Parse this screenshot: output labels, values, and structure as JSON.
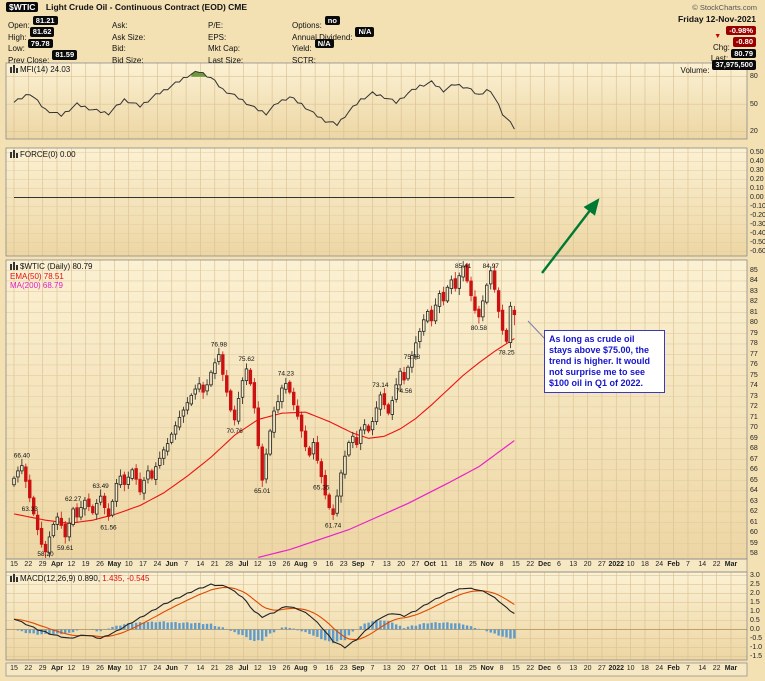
{
  "header": {
    "symbol": "$WTIC",
    "title": "Light Crude Oil - Continuous Contract (EOD) CME",
    "copyright": "© StockCharts.com"
  },
  "quote": {
    "date": "Friday 12-Nov-2021",
    "columns": [
      [
        {
          "label": "Open:",
          "value": "81.21"
        },
        {
          "label": "High:",
          "value": "81.62"
        },
        {
          "label": "Low:",
          "value": "79.78"
        },
        {
          "label": "Prev Close:",
          "value": "81.59"
        }
      ],
      [
        {
          "label": "Ask:"
        },
        {
          "label": "Ask Size:"
        },
        {
          "label": "Bid:"
        },
        {
          "label": "Bid Size:"
        }
      ],
      [
        {
          "label": "P/E:"
        },
        {
          "label": "EPS:"
        },
        {
          "label": "Mkt Cap:"
        },
        {
          "label": "Last Size:"
        }
      ],
      [
        {
          "label": "Options:",
          "value": "no"
        },
        {
          "label": "Annual Dividend:",
          "value": "N/A"
        },
        {
          "label": "Yield:",
          "value": "N/A"
        },
        {
          "label": "SCTR:"
        }
      ]
    ],
    "change_rows": [
      {
        "label": "",
        "value": "-0.98%",
        "cls": "red",
        "tri": true
      },
      {
        "label": "Chg:",
        "value": "-0.80",
        "cls": "red"
      },
      {
        "label": "Last:",
        "value": "80.79",
        "cls": "dark"
      },
      {
        "label": "Volume:",
        "value": "37,975,500",
        "cls": "dark"
      }
    ]
  },
  "legends": {
    "mfi": "MFI(14) 24.03",
    "force": "FORCE(0) 0.00",
    "price": "$WTIC (Daily) 80.79",
    "ema50": "EMA(50) 78.51",
    "ma200": "MA(200) 68.79",
    "macd_black": "MACD(12,26,9) 0.890,",
    "macd_red": "1.435, -0.545"
  },
  "annotation": {
    "text": "As long as crude oil stays above $75.00, the trend is higher. It would not surprise me to see $100 oil in Q1 of 2022."
  },
  "colors": {
    "up": "#222222",
    "down": "#CC1111",
    "up_fill": "#F8ECC6",
    "ema50": "#EE1111",
    "ma200": "#E822CC",
    "mfi_line": "#333333",
    "overbought_fill": "#6F9940",
    "macd_line": "#222222",
    "signal_line": "#E04A00",
    "histogram": "#5E9BCB",
    "arrow": "#007A33",
    "annotation_blue": "#1515CC",
    "panel_grad_top": "#FBF1D3",
    "panel_grad_bottom": "#EDD6A4",
    "grid": "#D8BD8E"
  },
  "chart_data": {
    "type": "candlestick",
    "title": "$WTIC Light Crude Oil - Continuous Contract (EOD) CME",
    "timeframe": "Daily",
    "last_close": 80.79,
    "closes": [
      65.2,
      65.9,
      66.4,
      64.9,
      63.33,
      61.8,
      60.3,
      58.9,
      58.2,
      59.6,
      60.8,
      61.5,
      60.7,
      59.61,
      60.9,
      62.27,
      61.5,
      62.4,
      63.1,
      62.5,
      61.9,
      62.8,
      63.49,
      62.4,
      61.56,
      63.0,
      64.7,
      65.4,
      64.6,
      65.3,
      66.0,
      65.1,
      63.9,
      65.0,
      65.9,
      65.2,
      66.3,
      67.1,
      67.9,
      68.5,
      69.4,
      70.2,
      71.0,
      71.7,
      72.4,
      73.1,
      73.7,
      74.2,
      73.4,
      74.1,
      75.3,
      76.2,
      76.98,
      75.1,
      73.4,
      71.7,
      70.76,
      72.8,
      74.5,
      75.62,
      74.2,
      71.9,
      68.3,
      65.01,
      67.5,
      69.7,
      71.6,
      72.5,
      73.8,
      74.23,
      73.4,
      72.2,
      71.1,
      69.7,
      68.2,
      67.4,
      68.6,
      66.9,
      65.35,
      63.6,
      62.4,
      61.74,
      63.5,
      65.7,
      67.3,
      68.6,
      69.2,
      68.4,
      69.8,
      70.3,
      69.7,
      70.6,
      71.9,
      73.14,
      72.2,
      71.4,
      72.6,
      74.1,
      75.4,
      74.56,
      75.78,
      76.9,
      78.1,
      79.2,
      80.3,
      81.1,
      80.2,
      81.7,
      82.8,
      82.1,
      83.4,
      84.1,
      83.3,
      84.5,
      85.41,
      84.0,
      82.6,
      81.2,
      80.58,
      82.1,
      83.6,
      84.97,
      83.2,
      81.1,
      79.3,
      78.25,
      81.59,
      80.79
    ],
    "last_bar": {
      "open": 81.21,
      "high": 81.62,
      "low": 79.78,
      "close": 80.79
    },
    "ema50_points": [
      [
        0,
        61.8
      ],
      [
        8,
        61.2
      ],
      [
        14,
        60.9
      ],
      [
        20,
        61.2
      ],
      [
        26,
        61.8
      ],
      [
        32,
        62.6
      ],
      [
        38,
        63.8
      ],
      [
        44,
        65.4
      ],
      [
        50,
        67.2
      ],
      [
        56,
        69.3
      ],
      [
        62,
        70.8
      ],
      [
        68,
        71.4
      ],
      [
        74,
        71.5
      ],
      [
        80,
        70.6
      ],
      [
        86,
        69.5
      ],
      [
        90,
        69.0
      ],
      [
        94,
        69.2
      ],
      [
        98,
        69.9
      ],
      [
        102,
        70.9
      ],
      [
        106,
        72.2
      ],
      [
        110,
        73.6
      ],
      [
        114,
        75.0
      ],
      [
        118,
        76.2
      ],
      [
        122,
        77.3
      ],
      [
        127,
        78.51
      ]
    ],
    "ma200_points": [
      [
        55,
        57.0
      ],
      [
        70,
        58.4
      ],
      [
        85,
        60.3
      ],
      [
        100,
        62.8
      ],
      [
        110,
        64.7
      ],
      [
        118,
        66.3
      ],
      [
        127,
        68.79
      ]
    ],
    "mfi_points": [
      [
        0,
        52
      ],
      [
        4,
        62
      ],
      [
        8,
        44
      ],
      [
        12,
        38
      ],
      [
        16,
        50
      ],
      [
        20,
        44
      ],
      [
        24,
        40
      ],
      [
        28,
        55
      ],
      [
        32,
        48
      ],
      [
        36,
        60
      ],
      [
        40,
        70
      ],
      [
        44,
        81
      ],
      [
        47,
        86
      ],
      [
        50,
        79
      ],
      [
        53,
        66
      ],
      [
        57,
        57
      ],
      [
        61,
        46
      ],
      [
        64,
        40
      ],
      [
        67,
        52
      ],
      [
        70,
        58
      ],
      [
        73,
        50
      ],
      [
        76,
        40
      ],
      [
        79,
        32
      ],
      [
        82,
        28
      ],
      [
        85,
        42
      ],
      [
        88,
        55
      ],
      [
        91,
        62
      ],
      [
        94,
        58
      ],
      [
        97,
        52
      ],
      [
        100,
        62
      ],
      [
        103,
        70
      ],
      [
        106,
        74
      ],
      [
        109,
        65
      ],
      [
        112,
        72
      ],
      [
        115,
        68
      ],
      [
        118,
        60
      ],
      [
        120,
        66
      ],
      [
        122,
        58
      ],
      [
        124,
        40
      ],
      [
        127,
        24
      ]
    ],
    "mfi_last": 24.03,
    "force_value": 0.0,
    "macd_points": [
      [
        0,
        0.6
      ],
      [
        3,
        0.3
      ],
      [
        6,
        0.0
      ],
      [
        10,
        -0.3
      ],
      [
        14,
        -0.5
      ],
      [
        18,
        -0.3
      ],
      [
        22,
        -0.5
      ],
      [
        26,
        -0.1
      ],
      [
        30,
        0.4
      ],
      [
        34,
        0.9
      ],
      [
        38,
        1.4
      ],
      [
        42,
        1.8
      ],
      [
        46,
        2.2
      ],
      [
        50,
        2.5
      ],
      [
        54,
        2.4
      ],
      [
        58,
        1.8
      ],
      [
        61,
        1.0
      ],
      [
        63,
        0.7
      ],
      [
        66,
        0.95
      ],
      [
        69,
        1.3
      ],
      [
        72,
        1.15
      ],
      [
        75,
        0.8
      ],
      [
        78,
        0.15
      ],
      [
        81,
        -0.65
      ],
      [
        84,
        -1.0
      ],
      [
        87,
        -0.55
      ],
      [
        90,
        0.1
      ],
      [
        93,
        0.65
      ],
      [
        96,
        0.9
      ],
      [
        99,
        0.75
      ],
      [
        102,
        1.05
      ],
      [
        105,
        1.45
      ],
      [
        108,
        1.8
      ],
      [
        111,
        2.1
      ],
      [
        114,
        2.3
      ],
      [
        117,
        2.25
      ],
      [
        120,
        2.05
      ],
      [
        123,
        1.6
      ],
      [
        125,
        1.2
      ],
      [
        127,
        0.89
      ]
    ],
    "macd_last": {
      "macd": 0.89,
      "signal": 1.435,
      "hist": -0.545
    },
    "price_labels": [
      {
        "i": 2,
        "t": "66.40",
        "p": "a"
      },
      {
        "i": 4,
        "t": "63.33",
        "p": "b"
      },
      {
        "i": 8,
        "t": "58.20",
        "p": "b"
      },
      {
        "i": 13,
        "t": "59.61",
        "p": "b"
      },
      {
        "i": 15,
        "t": "62.27",
        "p": "a"
      },
      {
        "i": 22,
        "t": "63.49",
        "p": "a"
      },
      {
        "i": 24,
        "t": "61.56",
        "p": "b"
      },
      {
        "i": 52,
        "t": "76.98",
        "p": "a"
      },
      {
        "i": 56,
        "t": "70.76",
        "p": "b"
      },
      {
        "i": 59,
        "t": "75.62",
        "p": "a"
      },
      {
        "i": 63,
        "t": "65.01",
        "p": "b"
      },
      {
        "i": 69,
        "t": "74.23",
        "p": "a"
      },
      {
        "i": 78,
        "t": "65.35",
        "p": "b"
      },
      {
        "i": 81,
        "t": "61.74",
        "p": "b"
      },
      {
        "i": 93,
        "t": "73.14",
        "p": "a"
      },
      {
        "i": 99,
        "t": "74.56",
        "p": "b"
      },
      {
        "i": 101,
        "t": "75.78",
        "p": "a"
      },
      {
        "i": 114,
        "t": "85.41",
        "p": "a"
      },
      {
        "i": 118,
        "t": "80.58",
        "p": "b"
      },
      {
        "i": 121,
        "t": "84.97",
        "p": "a"
      },
      {
        "i": 125,
        "t": "78.25",
        "p": "b"
      }
    ],
    "axes": {
      "mfi": [
        "80",
        "50",
        "20"
      ],
      "force": [
        "0.50",
        "0.40",
        "0.30",
        "0.20",
        "0.10",
        "0.00",
        "-0.10",
        "-0.20",
        "-0.30",
        "-0.40",
        "-0.50",
        "-0.60"
      ],
      "price": [
        "85",
        "84",
        "83",
        "82",
        "81",
        "80",
        "79",
        "78",
        "77",
        "76",
        "75",
        "74",
        "73",
        "72",
        "71",
        "70",
        "69",
        "68",
        "67",
        "66",
        "65",
        "64",
        "63",
        "62",
        "61",
        "60",
        "59",
        "58"
      ],
      "macd": [
        "3.0",
        "2.5",
        "2.0",
        "1.5",
        "1.0",
        "0.5",
        "0.0",
        "-0.5",
        "-1.0",
        "-1.5"
      ]
    },
    "xlabels": [
      {
        "t": "15"
      },
      {
        "t": "22"
      },
      {
        "t": "29"
      },
      {
        "t": "Apr",
        "b": true
      },
      {
        "t": "12"
      },
      {
        "t": "19"
      },
      {
        "t": "26"
      },
      {
        "t": "May",
        "b": true
      },
      {
        "t": "10"
      },
      {
        "t": "17"
      },
      {
        "t": "24"
      },
      {
        "t": "Jun",
        "b": true
      },
      {
        "t": "7"
      },
      {
        "t": "14"
      },
      {
        "t": "21"
      },
      {
        "t": "28"
      },
      {
        "t": "Jul",
        "b": true
      },
      {
        "t": "12"
      },
      {
        "t": "19"
      },
      {
        "t": "26"
      },
      {
        "t": "Aug",
        "b": true
      },
      {
        "t": "9"
      },
      {
        "t": "16"
      },
      {
        "t": "23"
      },
      {
        "t": "Sep",
        "b": true
      },
      {
        "t": "7"
      },
      {
        "t": "13"
      },
      {
        "t": "20"
      },
      {
        "t": "27"
      },
      {
        "t": "Oct",
        "b": true
      },
      {
        "t": "11"
      },
      {
        "t": "18"
      },
      {
        "t": "25"
      },
      {
        "t": "Nov",
        "b": true
      },
      {
        "t": "8"
      },
      {
        "t": "15"
      },
      {
        "t": "22"
      },
      {
        "t": "Dec",
        "b": true
      },
      {
        "t": "6"
      },
      {
        "t": "13"
      },
      {
        "t": "20"
      },
      {
        "t": "27"
      },
      {
        "t": "2022",
        "b": true
      },
      {
        "t": "10"
      },
      {
        "t": "18"
      },
      {
        "t": "24"
      },
      {
        "t": "Feb",
        "b": true
      },
      {
        "t": "7"
      },
      {
        "t": "14"
      },
      {
        "t": "22"
      },
      {
        "t": "Mar",
        "b": true
      }
    ]
  }
}
